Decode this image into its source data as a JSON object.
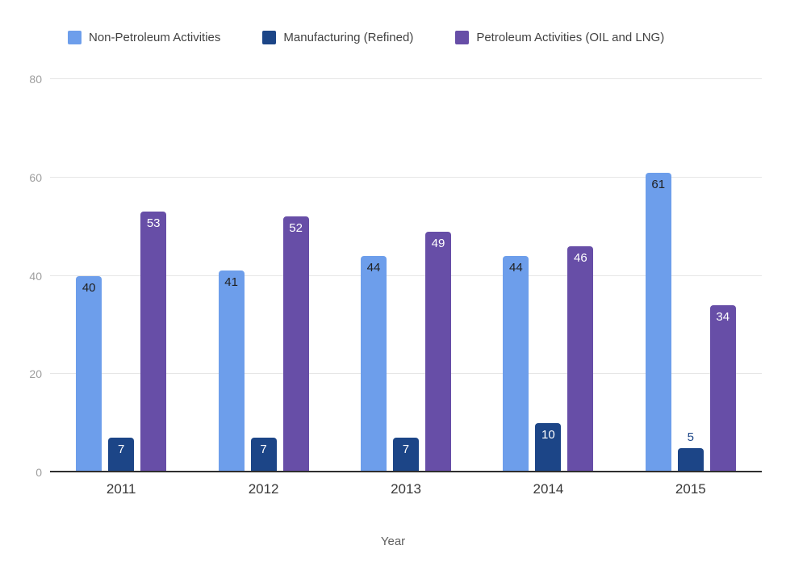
{
  "chart_data": {
    "type": "bar",
    "title": "",
    "categories": [
      "2011",
      "2012",
      "2013",
      "2014",
      "2015"
    ],
    "series": [
      {
        "name": "Non-Petroleum Activities",
        "color": "#6d9eeb",
        "label_color": "#212121",
        "values": [
          40,
          41,
          44,
          44,
          61
        ]
      },
      {
        "name": "Manufacturing (Refined)",
        "color": "#1c4587",
        "label_color": "#ffffff",
        "values": [
          7,
          7,
          7,
          10,
          5
        ]
      },
      {
        "name": "Petroleum Activities (OIL and LNG)",
        "color": "#674ea7",
        "label_color": "#ffffff",
        "values": [
          53,
          52,
          49,
          46,
          34
        ]
      }
    ],
    "xlabel": "Year",
    "ylabel": "",
    "ylim": [
      0,
      80
    ],
    "yticks": [
      0,
      20,
      40,
      60,
      80
    ],
    "grid": true,
    "legend_position": "top",
    "data_labels": true,
    "colors": {
      "background": "#ffffff",
      "gridline": "#e6e6e6",
      "baseline": "#2e2e2e",
      "ytick_text": "#9e9e9e",
      "xtick_text": "#383838",
      "axis_title_text": "#5f5f5f",
      "legend_text": "#424242"
    }
  }
}
